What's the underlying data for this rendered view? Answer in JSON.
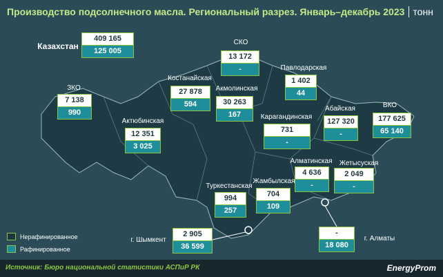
{
  "header": {
    "title": "Производство подсолнечного масла. Региональный разрез. Январь–декабрь 2023",
    "unit": "тонн"
  },
  "legend": [
    {
      "label": "Нерафинированное"
    },
    {
      "label": "Рафинированное"
    }
  ],
  "regions": [
    {
      "name": "Казахстан",
      "unrefined": "409 165",
      "refined": "125 005"
    },
    {
      "name": "СКО",
      "unrefined": "13 172",
      "refined": "-"
    },
    {
      "name": "Павлодарская",
      "unrefined": "1 402",
      "refined": "44"
    },
    {
      "name": "Костанайская",
      "unrefined": "27 878",
      "refined": "594"
    },
    {
      "name": "Акмолинская",
      "unrefined": "30 263",
      "refined": "167"
    },
    {
      "name": "ЗКО",
      "unrefined": "7 138",
      "refined": "990"
    },
    {
      "name": "Абайская",
      "unrefined": "127 320",
      "refined": "-"
    },
    {
      "name": "ВКО",
      "unrefined": "177 625",
      "refined": "65 140"
    },
    {
      "name": "Карагандинская",
      "unrefined": "731",
      "refined": "-"
    },
    {
      "name": "Актюбинская",
      "unrefined": "12 351",
      "refined": "3 025"
    },
    {
      "name": "Алматинская",
      "unrefined": "4 636",
      "refined": "-"
    },
    {
      "name": "Жетысуская",
      "unrefined": "2 049",
      "refined": "-"
    },
    {
      "name": "Туркестанская",
      "unrefined": "994",
      "refined": "257"
    },
    {
      "name": "Жамбылская",
      "unrefined": "704",
      "refined": "109"
    },
    {
      "name": "г. Шымкент",
      "unrefined": "2 905",
      "refined": "36 599"
    },
    {
      "name": "г. Алматы",
      "unrefined": "-",
      "refined": "18 080"
    }
  ],
  "source": "Источник: Бюро национальной статистики АСПиР РК",
  "brand": "EnergyProm"
}
